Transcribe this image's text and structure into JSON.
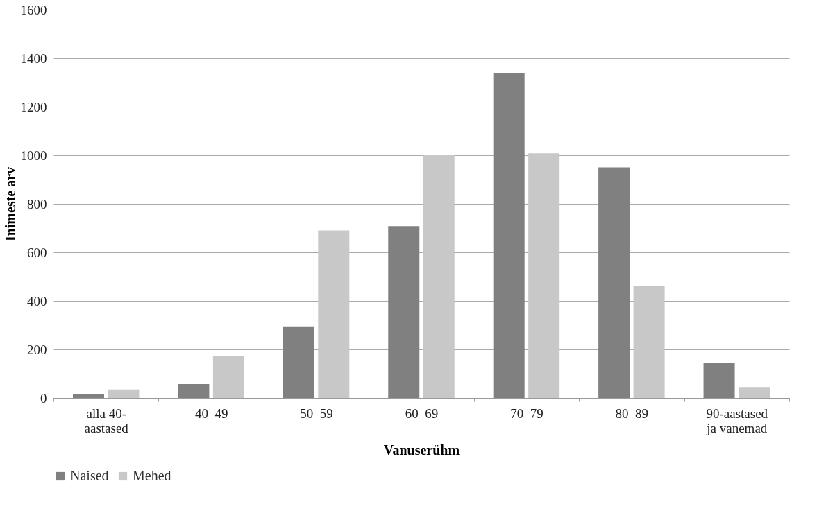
{
  "chart_data": {
    "type": "bar",
    "xlabel": "Vanuserühm",
    "ylabel": "Inimeste arv",
    "categories": [
      "alla 40-\naastased",
      "40–49",
      "50–59",
      "60–69",
      "70–79",
      "80–89",
      "90-aastased\nja vanemad"
    ],
    "series": [
      {
        "name": "Naised",
        "color": "#808080",
        "values": [
          15,
          57,
          295,
          708,
          1340,
          950,
          143
        ]
      },
      {
        "name": "Mehed",
        "color": "#c8c8c8",
        "values": [
          35,
          172,
          690,
          1000,
          1008,
          463,
          45
        ]
      }
    ],
    "ylim": [
      0,
      1600
    ],
    "yticks": [
      0,
      200,
      400,
      600,
      800,
      1000,
      1200,
      1400,
      1600
    ],
    "grid": "y",
    "legend": "bottom"
  }
}
